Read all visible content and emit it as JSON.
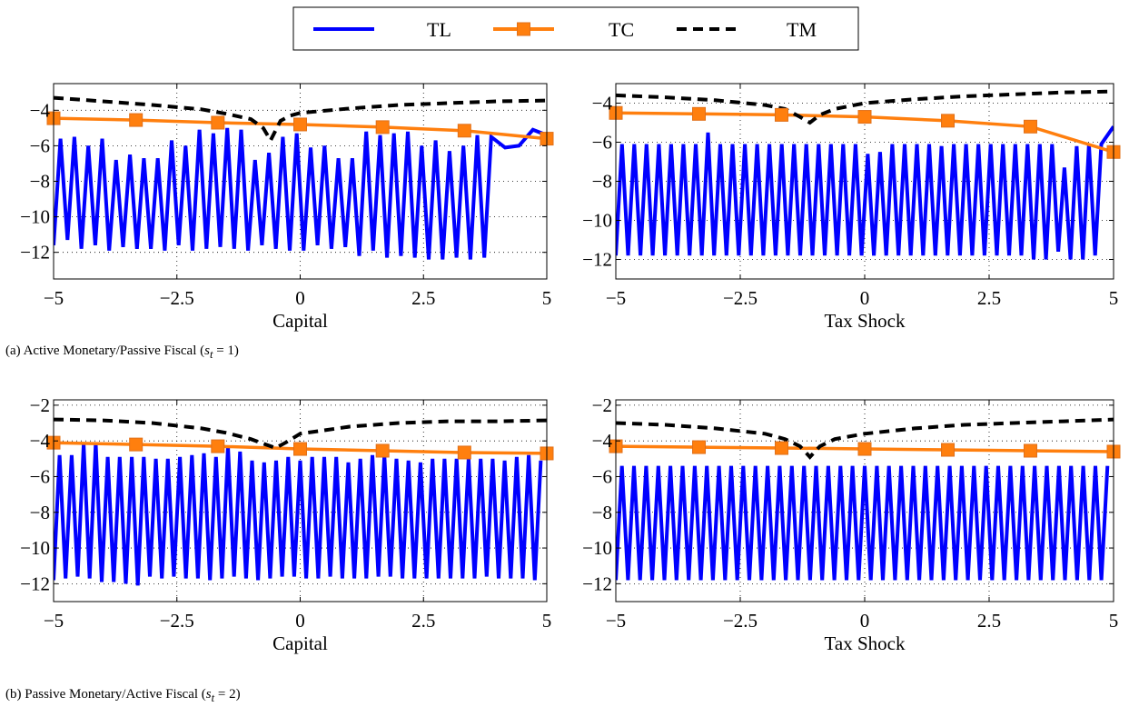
{
  "legend": {
    "placement": "top-center",
    "entries": [
      {
        "name": "TL",
        "color": "#0000ff",
        "style": "solid"
      },
      {
        "name": "TC",
        "color": "#ff7f0e",
        "style": "solid-square-markers"
      },
      {
        "name": "TM",
        "color": "#000000",
        "style": "dashed"
      }
    ]
  },
  "captions": {
    "a": "(a) Active Monetary/Passive Fiscal (",
    "a_var": "s",
    "a_sub": "t",
    "a_tail": " = 1)",
    "b": "(b) Passive Monetary/Active Fiscal (",
    "b_var": "s",
    "b_sub": "t",
    "b_tail": " = 2)"
  },
  "chart_data": [
    {
      "type": "line",
      "panel": "a-left",
      "xlabel": "Capital",
      "grid": true,
      "xlim": [
        -5,
        5
      ],
      "ylim": [
        -13.5,
        -2.5
      ],
      "xticks": [
        -5,
        -2.5,
        0,
        2.5,
        5
      ],
      "xtick_labels": [
        "−5",
        "−2.5",
        "0",
        "2.5",
        "5"
      ],
      "yticks": [
        -12,
        -10,
        -8,
        -6,
        -4
      ],
      "ytick_labels": [
        "−12",
        "−10",
        "−8",
        "−6",
        "−4"
      ],
      "series": [
        {
          "name": "TL",
          "tops": [
            -5.6,
            -5.5,
            -6.0,
            -5.6,
            -6.8,
            -6.5,
            -6.7,
            -6.7,
            -5.7,
            -6.0,
            -5.1,
            -5.3,
            -5.0,
            -5.1,
            -6.8,
            -6.4,
            -5.5,
            -5.3,
            -6.1,
            -6.0,
            -6.7,
            -6.7,
            -5.2,
            -5.4,
            -5.3,
            -5.2,
            -6.0,
            -5.7,
            -6.3,
            -6.0,
            -5.4,
            -5.5,
            -6.1,
            -6.0,
            -5.1,
            -5.4,
            -5.4,
            -5.4,
            -6.0,
            -5.5
          ],
          "bottoms": [
            -11.6,
            -11.3,
            -11.8,
            -11.6,
            -11.9,
            -11.7,
            -11.8,
            -11.8,
            -11.9,
            -11.6,
            -11.9,
            -11.8,
            -11.7,
            -11.8,
            -11.9,
            -11.6,
            -11.8,
            -11.9,
            -11.9,
            -11.6,
            -11.8,
            -11.7,
            -12.2,
            -11.9,
            -12.3,
            -12.2,
            -12.3,
            -12.4,
            -12.4,
            -12.3,
            -12.4,
            -12.3
          ]
        },
        {
          "name": "TC",
          "x": [
            -5,
            -3.33,
            -1.67,
            0,
            1.67,
            3.33,
            5
          ],
          "values": [
            -4.45,
            -4.55,
            -4.7,
            -4.8,
            -4.95,
            -5.15,
            -5.6
          ]
        },
        {
          "name": "TM",
          "x": [
            -5,
            -4,
            -3,
            -2,
            -1.5,
            -1.0,
            -0.75,
            -0.6,
            -0.4,
            -0.2,
            0,
            1,
            2,
            3,
            4,
            5
          ],
          "values": [
            -3.3,
            -3.5,
            -3.7,
            -3.95,
            -4.2,
            -4.5,
            -5.0,
            -5.7,
            -4.6,
            -4.3,
            -4.15,
            -3.9,
            -3.7,
            -3.6,
            -3.5,
            -3.45
          ]
        }
      ]
    },
    {
      "type": "line",
      "panel": "a-right",
      "xlabel": "Tax Shock",
      "grid": true,
      "xlim": [
        -5,
        5
      ],
      "ylim": [
        -13,
        -3
      ],
      "xticks": [
        -5,
        -2.5,
        0,
        2.5,
        5
      ],
      "xtick_labels": [
        "−5",
        "−2.5",
        "0",
        "2.5",
        "5"
      ],
      "yticks": [
        -12,
        -10,
        -8,
        -6,
        -4
      ],
      "ytick_labels": [
        "−12",
        "−10",
        "−8",
        "−6",
        "−4"
      ],
      "series": [
        {
          "name": "TL",
          "tops": [
            -6.1,
            -6.1,
            -6.1,
            -6.1,
            -6.1,
            -6.1,
            -6.1,
            -5.5,
            -6.1,
            -6.1,
            -6.1,
            -6.1,
            -6.1,
            -6.1,
            -6.1,
            -6.1,
            -6.1,
            -6.1,
            -6.1,
            -6.1,
            -6.6,
            -6.5,
            -6.1,
            -6.1,
            -6.1,
            -6.1,
            -6.2,
            -6.1,
            -6.1,
            -6.1,
            -6.1,
            -6.1,
            -6.1,
            -6.1,
            -6.1,
            -6.1,
            -7.3,
            -6.2,
            -6.1,
            -6.1,
            -5.2,
            -5.0
          ],
          "bottoms": [
            -11.8,
            -11.8,
            -11.8,
            -11.8,
            -11.8,
            -11.8,
            -11.8,
            -11.8,
            -11.8,
            -11.8,
            -11.8,
            -11.8,
            -11.8,
            -11.8,
            -11.8,
            -11.8,
            -11.8,
            -11.8,
            -11.8,
            -11.8,
            -11.8,
            -11.8,
            -11.8,
            -11.8,
            -11.8,
            -11.8,
            -11.8,
            -11.8,
            -11.8,
            -11.8,
            -11.8,
            -11.8,
            -11.8,
            -11.8,
            -12.0,
            -12.0,
            -11.6,
            -12.0,
            -12.0,
            -11.8
          ]
        },
        {
          "name": "TC",
          "x": [
            -5,
            -3.33,
            -1.67,
            0,
            1.67,
            3.33,
            5
          ],
          "values": [
            -4.5,
            -4.55,
            -4.6,
            -4.7,
            -4.9,
            -5.2,
            -6.5
          ]
        },
        {
          "name": "TM",
          "x": [
            -5,
            -4,
            -3,
            -2,
            -1.6,
            -1.3,
            -1.1,
            -0.9,
            -0.6,
            0,
            1,
            2,
            3,
            4,
            5
          ],
          "values": [
            -3.6,
            -3.7,
            -3.85,
            -4.1,
            -4.3,
            -4.7,
            -5.0,
            -4.6,
            -4.3,
            -4.0,
            -3.8,
            -3.65,
            -3.55,
            -3.45,
            -3.4
          ]
        }
      ]
    },
    {
      "type": "line",
      "panel": "b-left",
      "xlabel": "Capital",
      "grid": true,
      "xlim": [
        -5,
        5
      ],
      "ylim": [
        -13,
        -1.7
      ],
      "xticks": [
        -5,
        -2.5,
        0,
        2.5,
        5
      ],
      "xtick_labels": [
        "−5",
        "−2.5",
        "0",
        "2.5",
        "5"
      ],
      "yticks": [
        -12,
        -10,
        -8,
        -6,
        -4,
        -2
      ],
      "ytick_labels": [
        "−12",
        "−10",
        "−8",
        "−6",
        "−4",
        "−2"
      ],
      "series": [
        {
          "name": "TL",
          "tops": [
            -4.8,
            -4.8,
            -4.2,
            -4.1,
            -4.9,
            -4.9,
            -4.9,
            -4.9,
            -5.0,
            -5.0,
            -4.9,
            -4.8,
            -4.7,
            -4.9,
            -4.3,
            -4.6,
            -5.1,
            -5.2,
            -5.1,
            -4.9,
            -5.1,
            -4.9,
            -4.9,
            -4.9,
            -5.2,
            -5.0,
            -4.8,
            -4.8,
            -5.0,
            -5.1,
            -5.2,
            -5.0,
            -5.0,
            -5.0,
            -5.0,
            -5.0,
            -5.0,
            -5.1,
            -4.9,
            -4.8,
            -5.1,
            -4.9
          ],
          "bottoms": [
            -11.8,
            -11.7,
            -11.6,
            -11.7,
            -11.9,
            -11.9,
            -12.0,
            -12.1,
            -11.6,
            -11.7,
            -11.6,
            -11.7,
            -11.7,
            -11.8,
            -11.7,
            -11.6,
            -11.7,
            -11.8,
            -11.7,
            -11.6,
            -11.6,
            -11.7,
            -11.7,
            -11.6,
            -11.7,
            -11.7,
            -11.7,
            -11.6,
            -11.6,
            -11.7,
            -11.7,
            -11.7,
            -11.7,
            -11.7,
            -11.7,
            -11.7,
            -11.6,
            -11.7,
            -11.7,
            -11.7,
            -11.8
          ]
        },
        {
          "name": "TC",
          "x": [
            -5,
            -3.33,
            -1.67,
            0,
            1.67,
            3.33,
            5
          ],
          "values": [
            -4.1,
            -4.2,
            -4.3,
            -4.45,
            -4.55,
            -4.65,
            -4.7
          ]
        },
        {
          "name": "TM",
          "x": [
            -5,
            -4,
            -3,
            -2,
            -1.5,
            -1.0,
            -0.7,
            -0.5,
            -0.3,
            0,
            1,
            2,
            3,
            4,
            5
          ],
          "values": [
            -2.8,
            -2.85,
            -3.0,
            -3.3,
            -3.55,
            -3.9,
            -4.2,
            -4.4,
            -4.1,
            -3.6,
            -3.2,
            -3.0,
            -2.9,
            -2.9,
            -2.85
          ]
        }
      ]
    },
    {
      "type": "line",
      "panel": "b-right",
      "xlabel": "Tax Shock",
      "grid": true,
      "xlim": [
        -5,
        5
      ],
      "ylim": [
        -13,
        -1.7
      ],
      "xticks": [
        -5,
        -2.5,
        0,
        2.5,
        5
      ],
      "xtick_labels": [
        "−5",
        "−2.5",
        "0",
        "2.5",
        "5"
      ],
      "yticks": [
        -12,
        -10,
        -8,
        -6,
        -4,
        -2
      ],
      "ytick_labels": [
        "−12",
        "−10",
        "−8",
        "−6",
        "−4",
        "−2"
      ],
      "series": [
        {
          "name": "TL",
          "tops": [
            -5.4,
            -5.4,
            -5.4,
            -5.4,
            -5.4,
            -5.4,
            -5.4,
            -5.4,
            -5.4,
            -5.4,
            -5.4,
            -5.4,
            -5.4,
            -5.4,
            -5.4,
            -5.4,
            -5.4,
            -5.4,
            -5.4,
            -5.4,
            -5.4,
            -5.4,
            -5.4,
            -5.4,
            -5.4,
            -5.4,
            -5.4,
            -5.4,
            -5.4,
            -5.4,
            -5.4,
            -5.4,
            -5.4,
            -5.4,
            -5.4,
            -5.4,
            -5.4,
            -5.4,
            -5.4,
            -5.4,
            -5.4,
            -5.4
          ],
          "bottoms": [
            -11.8,
            -11.8,
            -11.8,
            -11.8,
            -11.8,
            -11.8,
            -11.8,
            -11.8,
            -11.8,
            -11.8,
            -11.8,
            -11.8,
            -11.8,
            -11.8,
            -11.8,
            -11.8,
            -11.8,
            -11.8,
            -11.8,
            -11.8,
            -11.8,
            -11.8,
            -11.8,
            -11.8,
            -11.8,
            -11.8,
            -11.8,
            -11.8,
            -11.8,
            -11.8,
            -11.8,
            -11.8,
            -11.8,
            -11.8,
            -11.8,
            -11.8,
            -11.8,
            -11.8,
            -11.8,
            -11.8,
            -11.8
          ]
        },
        {
          "name": "TC",
          "x": [
            -5,
            -3.33,
            -1.67,
            0,
            1.67,
            3.33,
            5
          ],
          "values": [
            -4.3,
            -4.35,
            -4.4,
            -4.45,
            -4.5,
            -4.55,
            -4.6
          ]
        },
        {
          "name": "TM",
          "x": [
            -5,
            -4,
            -3,
            -2,
            -1.6,
            -1.3,
            -1.1,
            -0.9,
            -0.6,
            0,
            1,
            2,
            3,
            4,
            5
          ],
          "values": [
            -3.0,
            -3.1,
            -3.3,
            -3.6,
            -3.9,
            -4.3,
            -4.9,
            -4.3,
            -3.9,
            -3.6,
            -3.3,
            -3.1,
            -3.0,
            -2.9,
            -2.8
          ]
        }
      ]
    }
  ]
}
